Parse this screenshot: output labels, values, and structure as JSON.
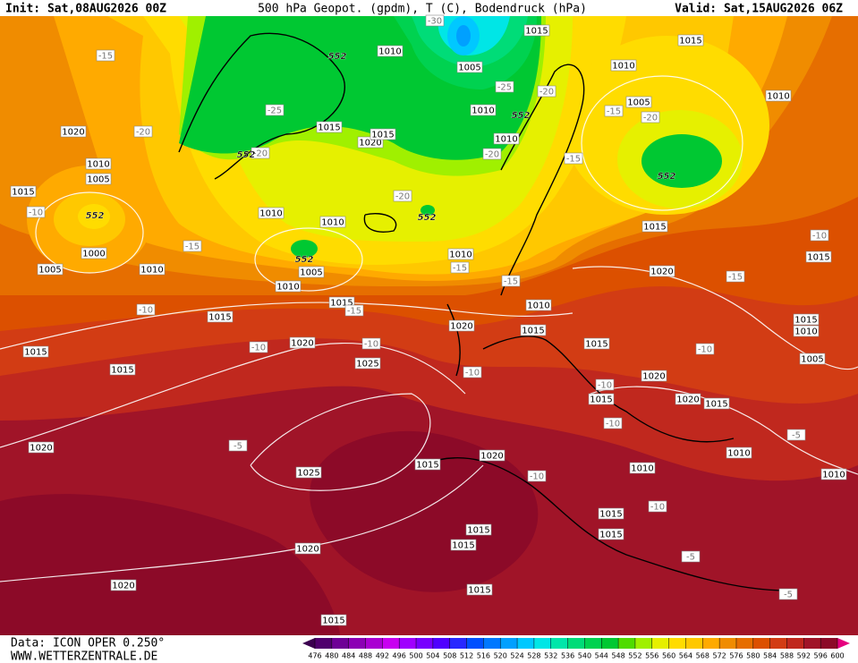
{
  "header": {
    "init": "Init: Sat,08AUG2026 00Z",
    "title": "500 hPa Geopot. (gpdm), T (C), Bodendruck (hPa)",
    "valid": "Valid: Sat,15AUG2026 06Z"
  },
  "footer": {
    "data": "Data: ICON OPER 0.250°",
    "site": "WWW.WETTERZENTRALE.DE"
  },
  "colorbar": {
    "ticks": [
      476,
      480,
      484,
      488,
      492,
      496,
      500,
      504,
      508,
      512,
      516,
      520,
      524,
      528,
      532,
      536,
      540,
      544,
      548,
      552,
      556,
      560,
      564,
      568,
      572,
      576,
      580,
      584,
      588,
      592,
      596,
      600
    ],
    "colors": [
      "#3c0050",
      "#50006e",
      "#6e0096",
      "#8c00b4",
      "#aa00d2",
      "#c800f0",
      "#a000ff",
      "#7800ff",
      "#5000ff",
      "#2828ff",
      "#0050ff",
      "#0078ff",
      "#00a0ff",
      "#00c8ff",
      "#00e6e6",
      "#00e6aa",
      "#00dc78",
      "#00d250",
      "#00c832",
      "#50dc00",
      "#a0f000",
      "#e6f000",
      "#ffdc00",
      "#ffc800",
      "#ffaa00",
      "#f08c00",
      "#e66e00",
      "#dc5000",
      "#d23c14",
      "#c0281e",
      "#a01428",
      "#8c0a28",
      "#e6007e"
    ]
  },
  "isobar_labels": [
    "1015",
    "1015",
    "1010",
    "1010",
    "1005",
    "1010",
    "1015",
    "1020",
    "1015",
    "1010",
    "1005",
    "1010",
    "1020",
    "1010",
    "1005",
    "1015",
    "1000",
    "1005",
    "1010",
    "1010",
    "1010",
    "1005",
    "1010",
    "1010",
    "1015",
    "1015",
    "1015",
    "1020",
    "1025",
    "1015",
    "1020",
    "1010",
    "1015",
    "1015",
    "1015",
    "1020",
    "1015",
    "1015",
    "1010",
    "1005",
    "1020",
    "1020",
    "1015",
    "1015",
    "1010",
    "1010",
    "1020",
    "1025",
    "1015",
    "1020",
    "1015",
    "1015",
    "1015",
    "1015",
    "1020",
    "1020",
    "1015",
    "1015",
    "1010"
  ],
  "temperature_labels": [
    "-30",
    "-25",
    "-25",
    "-20",
    "-20",
    "-20",
    "-20",
    "-20",
    "-20",
    "-15",
    "-15",
    "-15",
    "-15",
    "-15",
    "-15",
    "-15",
    "-15",
    "-10",
    "-10",
    "-10",
    "-10",
    "-10",
    "-10",
    "-10",
    "-10",
    "-10",
    "-10",
    "-10",
    "-5",
    "-5",
    "-5",
    "-5"
  ],
  "geopotential_labels": [
    "552",
    "552",
    "552",
    "552",
    "552",
    "552",
    "552"
  ]
}
